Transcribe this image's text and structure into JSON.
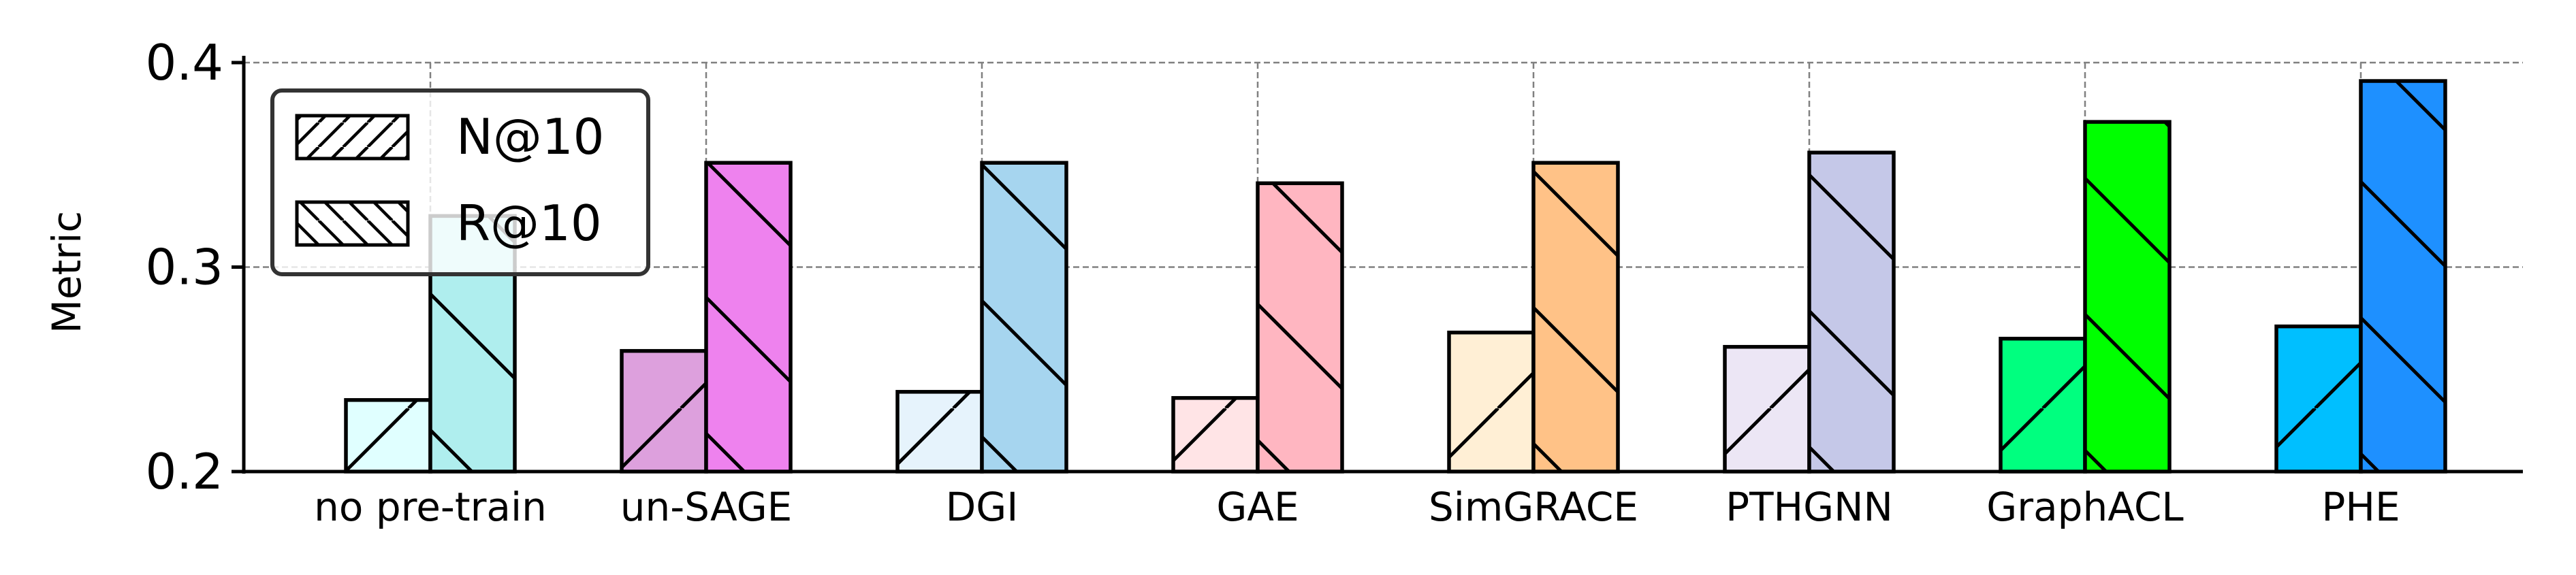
{
  "chart_data": {
    "type": "bar",
    "title": "",
    "xlabel": "",
    "ylabel": "Metric",
    "ylim": [
      0.2,
      0.4
    ],
    "yticks": [
      0.2,
      0.3,
      0.4
    ],
    "ytick_labels": [
      "0.2",
      "0.3",
      "0.4"
    ],
    "grid": true,
    "legend_position": "top-left",
    "categories": [
      "no pre-train",
      "un-SAGE",
      "DGI",
      "GAE",
      "SimGRACE",
      "PTHGNN",
      "GraphACL",
      "PHE"
    ],
    "series": [
      {
        "name": "N@10",
        "hatch": "forward-diagonal",
        "values": [
          0.235,
          0.259,
          0.239,
          0.236,
          0.268,
          0.261,
          0.265,
          0.271
        ],
        "colors": [
          "#E0FFFF",
          "#DDA0DD",
          "#E6F3FC",
          "#FFE4E6",
          "#FFEFD5",
          "#ECE6F5",
          "#00FF7F",
          "#00BFFF"
        ]
      },
      {
        "name": "R@10",
        "hatch": "back-diagonal",
        "values": [
          0.325,
          0.351,
          0.351,
          0.341,
          0.351,
          0.356,
          0.371,
          0.391
        ],
        "colors": [
          "#AFEEEE",
          "#EE82EE",
          "#A6D5EF",
          "#FFB6C1",
          "#FFC287",
          "#C5C8E8",
          "#00FF00",
          "#1E90FF"
        ]
      }
    ]
  }
}
